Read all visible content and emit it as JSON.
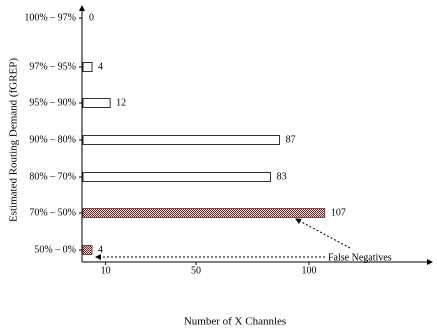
{
  "chart_data": {
    "type": "hbar",
    "xlabel": "Number of X Channles",
    "ylabel": "Estimated Routing Demand (fGREP)",
    "categories": [
      "100% – 97%",
      "97% – 95%",
      "95% – 90%",
      "90% – 80%",
      "80% – 70%",
      "70% – 50%",
      "50% – 0%"
    ],
    "values": [
      0,
      4,
      12,
      87,
      83,
      107,
      4
    ],
    "hatched": [
      false,
      false,
      false,
      false,
      false,
      true,
      true
    ],
    "color": "#ffffff",
    "hatch_color": "#6b2a2a",
    "xlim": [
      0,
      150
    ],
    "xticks": [
      10,
      50,
      100
    ],
    "annotation": "False Negatives"
  }
}
